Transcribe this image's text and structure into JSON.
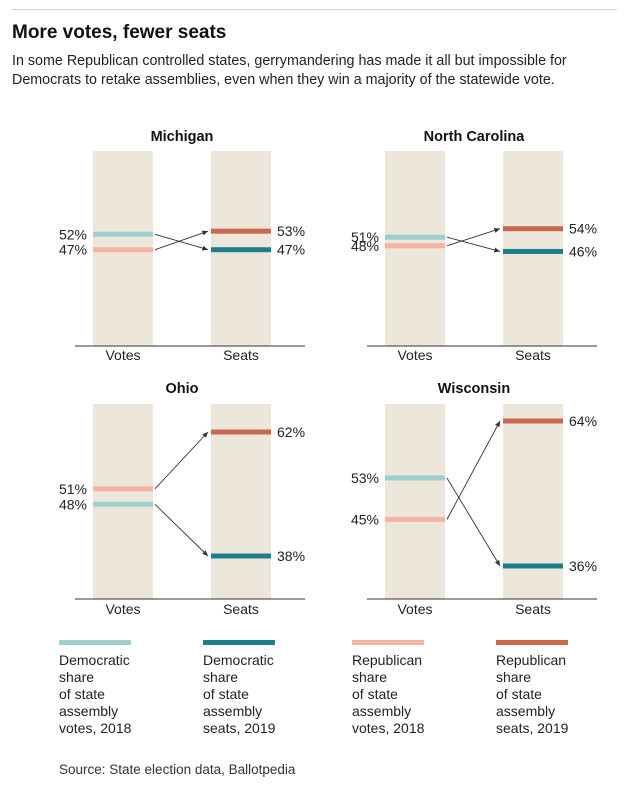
{
  "title": "More votes, fewer seats",
  "subtitle": "In some Republican controlled states, gerrymandering has made it all but impossible for Democrats to retake assemblies, even when they win a majority of the statewide vote.",
  "source": "Source: State election data, Ballotpedia",
  "colors": {
    "dem_votes": "#9ecfcf",
    "dem_seats": "#1f7d8c",
    "rep_votes": "#f4b4a2",
    "rep_seats": "#c9694d",
    "column_bg": "#ede6da",
    "axis": "#333333",
    "connector": "#333333"
  },
  "legend": [
    {
      "key": "dem_votes",
      "label": "Democratic\nshare\nof state\nassembly\nvotes, 2018"
    },
    {
      "key": "dem_seats",
      "label": "Democratic\nshare\nof state\nassembly\nseats, 2019"
    },
    {
      "key": "rep_votes",
      "label": "Republican\nshare\nof state\nassembly\nvotes, 2018"
    },
    {
      "key": "rep_seats",
      "label": "Republican\nshare\nof state\nassembly\nseats, 2019"
    }
  ],
  "chart_data": [
    {
      "type": "slope",
      "title": "Michigan",
      "categories": [
        "Votes",
        "Seats"
      ],
      "series": [
        {
          "name": "Democratic",
          "values": [
            52,
            47
          ],
          "labels": [
            "52%",
            "47%"
          ]
        },
        {
          "name": "Republican",
          "values": [
            47,
            53
          ],
          "labels": [
            "47%",
            "53%"
          ]
        }
      ]
    },
    {
      "type": "slope",
      "title": "North Carolina",
      "categories": [
        "Votes",
        "Seats"
      ],
      "series": [
        {
          "name": "Democratic",
          "values": [
            51,
            46
          ],
          "labels": [
            "51%",
            "46%"
          ]
        },
        {
          "name": "Republican",
          "values": [
            48,
            54
          ],
          "labels": [
            "48%",
            "54%"
          ]
        }
      ]
    },
    {
      "type": "slope",
      "title": "Ohio",
      "categories": [
        "Votes",
        "Seats"
      ],
      "series": [
        {
          "name": "Democratic",
          "values": [
            48,
            38
          ],
          "labels": [
            "48%",
            "38%"
          ]
        },
        {
          "name": "Republican",
          "values": [
            51,
            62
          ],
          "labels": [
            "51%",
            "62%"
          ]
        }
      ]
    },
    {
      "type": "slope",
      "title": "Wisconsin",
      "categories": [
        "Votes",
        "Seats"
      ],
      "series": [
        {
          "name": "Democratic",
          "values": [
            53,
            36
          ],
          "labels": [
            "53%",
            "36%"
          ]
        },
        {
          "name": "Republican",
          "values": [
            45,
            64
          ],
          "labels": [
            "45%",
            "64%"
          ]
        }
      ]
    }
  ]
}
